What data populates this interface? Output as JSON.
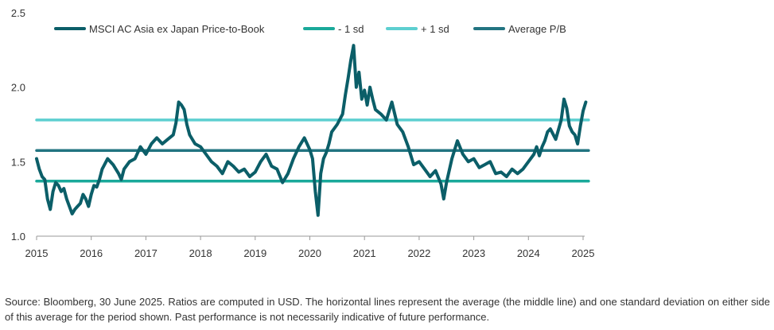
{
  "chart_data": {
    "type": "line",
    "title": "",
    "xlabel": "",
    "ylabel": "",
    "xlim": [
      2015.0,
      2025.0
    ],
    "ylim": [
      1.0,
      2.5
    ],
    "grid": false,
    "legend_placement": "top",
    "x_ticks": [
      "2015",
      "2016",
      "2017",
      "2018",
      "2019",
      "2020",
      "2021",
      "2022",
      "2023",
      "2024",
      "2025"
    ],
    "y_ticks": [
      "1.0",
      "1.5",
      "2.0",
      "2.5"
    ],
    "series": [
      {
        "name": "MSCI AC Asia ex Japan Price-to-Book",
        "color": "#0b5e68",
        "x": [
          2015.0,
          2015.05,
          2015.1,
          2015.15,
          2015.2,
          2015.25,
          2015.3,
          2015.35,
          2015.4,
          2015.45,
          2015.5,
          2015.55,
          2015.6,
          2015.65,
          2015.7,
          2015.75,
          2015.8,
          2015.85,
          2015.9,
          2015.95,
          2016.0,
          2016.05,
          2016.1,
          2016.15,
          2016.2,
          2016.3,
          2016.4,
          2016.5,
          2016.55,
          2016.6,
          2016.7,
          2016.8,
          2016.9,
          2017.0,
          2017.1,
          2017.2,
          2017.3,
          2017.4,
          2017.5,
          2017.55,
          2017.6,
          2017.65,
          2017.7,
          2017.75,
          2017.8,
          2017.9,
          2018.0,
          2018.1,
          2018.2,
          2018.3,
          2018.4,
          2018.5,
          2018.6,
          2018.7,
          2018.8,
          2018.9,
          2019.0,
          2019.1,
          2019.2,
          2019.3,
          2019.4,
          2019.5,
          2019.6,
          2019.7,
          2019.8,
          2019.9,
          2020.0,
          2020.05,
          2020.1,
          2020.15,
          2020.2,
          2020.25,
          2020.3,
          2020.35,
          2020.4,
          2020.5,
          2020.6,
          2020.65,
          2020.7,
          2020.75,
          2020.8,
          2020.85,
          2020.9,
          2020.95,
          2021.0,
          2021.05,
          2021.1,
          2021.15,
          2021.2,
          2021.3,
          2021.4,
          2021.5,
          2021.6,
          2021.7,
          2021.8,
          2021.9,
          2022.0,
          2022.1,
          2022.2,
          2022.3,
          2022.4,
          2022.45,
          2022.5,
          2022.6,
          2022.7,
          2022.8,
          2022.9,
          2023.0,
          2023.1,
          2023.2,
          2023.3,
          2023.4,
          2023.5,
          2023.6,
          2023.7,
          2023.8,
          2023.9,
          2024.0,
          2024.1,
          2024.15,
          2024.2,
          2024.25,
          2024.3,
          2024.35,
          2024.4,
          2024.5,
          2024.6,
          2024.65,
          2024.7,
          2024.75,
          2024.8,
          2024.85,
          2024.9,
          2024.95,
          2025.0,
          2025.05
        ],
        "values": [
          1.52,
          1.45,
          1.4,
          1.38,
          1.25,
          1.18,
          1.3,
          1.36,
          1.34,
          1.3,
          1.32,
          1.25,
          1.2,
          1.15,
          1.18,
          1.2,
          1.22,
          1.28,
          1.25,
          1.2,
          1.28,
          1.34,
          1.33,
          1.38,
          1.45,
          1.52,
          1.48,
          1.42,
          1.38,
          1.45,
          1.5,
          1.52,
          1.6,
          1.55,
          1.62,
          1.66,
          1.62,
          1.65,
          1.68,
          1.76,
          1.9,
          1.88,
          1.85,
          1.75,
          1.68,
          1.62,
          1.6,
          1.55,
          1.5,
          1.47,
          1.42,
          1.5,
          1.47,
          1.43,
          1.45,
          1.4,
          1.43,
          1.5,
          1.55,
          1.47,
          1.45,
          1.36,
          1.42,
          1.52,
          1.6,
          1.66,
          1.58,
          1.52,
          1.3,
          1.14,
          1.42,
          1.52,
          1.56,
          1.62,
          1.7,
          1.75,
          1.82,
          1.95,
          2.06,
          2.18,
          2.28,
          2.0,
          2.1,
          1.92,
          1.98,
          1.88,
          2.0,
          1.92,
          1.85,
          1.82,
          1.78,
          1.9,
          1.75,
          1.7,
          1.6,
          1.48,
          1.5,
          1.45,
          1.4,
          1.44,
          1.35,
          1.25,
          1.36,
          1.52,
          1.64,
          1.55,
          1.5,
          1.52,
          1.46,
          1.48,
          1.5,
          1.42,
          1.43,
          1.4,
          1.45,
          1.42,
          1.45,
          1.5,
          1.55,
          1.6,
          1.54,
          1.6,
          1.64,
          1.7,
          1.72,
          1.65,
          1.78,
          1.92,
          1.86,
          1.74,
          1.7,
          1.68,
          1.62,
          1.74,
          1.84,
          1.9
        ]
      },
      {
        "name": "- 1 sd",
        "color": "#1aa99a",
        "x": [
          2015.0,
          2025.1
        ],
        "values": [
          1.37,
          1.37
        ]
      },
      {
        "name": "+ 1 sd",
        "color": "#5dcfd0",
        "x": [
          2015.0,
          2025.1
        ],
        "values": [
          1.78,
          1.78
        ]
      },
      {
        "name": "Average P/B",
        "color": "#227481",
        "x": [
          2015.0,
          2025.1
        ],
        "values": [
          1.575,
          1.575
        ]
      }
    ]
  },
  "footnote": "Source: Bloomberg, 30 June 2025. Ratios are computed in USD. The horizontal lines represent the average (the middle line) and one standard deviation on either side of this average for the period shown. Past performance is not necessarily indicative of future performance."
}
